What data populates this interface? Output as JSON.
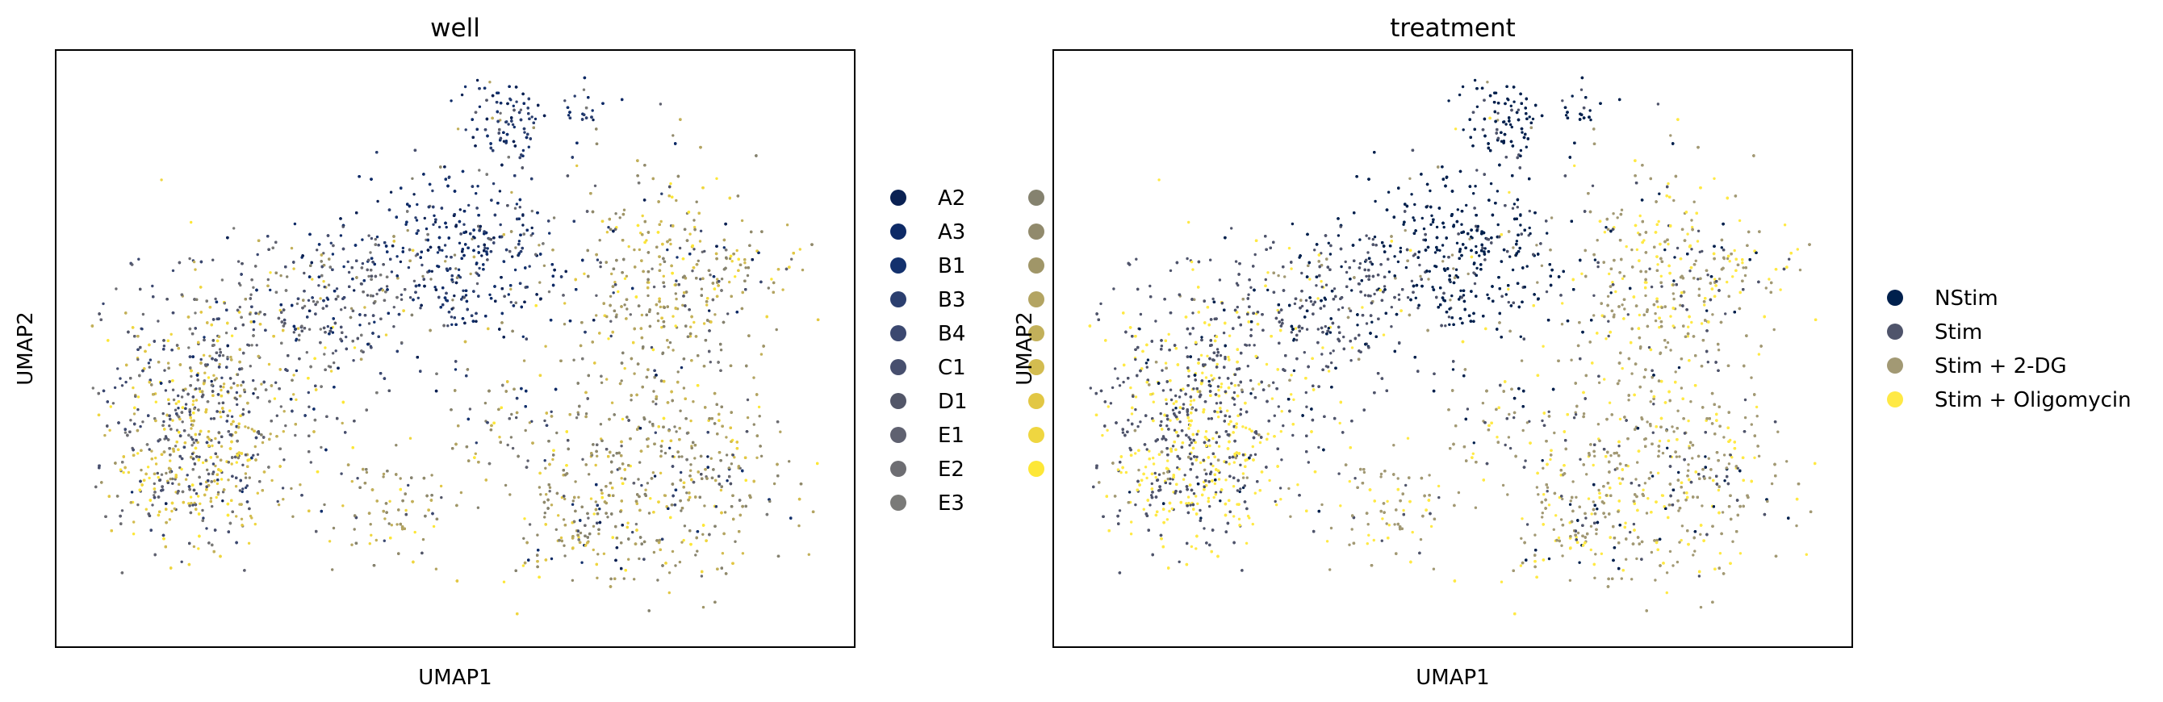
{
  "chart_data": [
    {
      "type": "scatter",
      "title": "well",
      "xlabel": "UMAP1",
      "ylabel": "UMAP2",
      "grid": false,
      "legend_position": "right",
      "legend": [
        {
          "label": "A2",
          "color": "#0a2153"
        },
        {
          "label": "A3",
          "color": "#0d2a66"
        },
        {
          "label": "B1",
          "color": "#13316d"
        },
        {
          "label": "B3",
          "color": "#2b3f6f"
        },
        {
          "label": "B4",
          "color": "#3b4870"
        },
        {
          "label": "C1",
          "color": "#474f6e"
        },
        {
          "label": "D1",
          "color": "#525668"
        },
        {
          "label": "E1",
          "color": "#5f6170"
        },
        {
          "label": "E2",
          "color": "#6d6d72"
        },
        {
          "label": "E3",
          "color": "#7a7a78"
        },
        {
          "label": "",
          "color": "#85826f"
        },
        {
          "label": "",
          "color": "#918a6c"
        },
        {
          "label": "",
          "color": "#a09668"
        },
        {
          "label": "",
          "color": "#b3a462"
        },
        {
          "label": "",
          "color": "#c2b05a"
        },
        {
          "label": "",
          "color": "#d3bc50"
        },
        {
          "label": "",
          "color": "#e2c744"
        },
        {
          "label": "",
          "color": "#efd640"
        },
        {
          "label": "",
          "color": "#fde737"
        }
      ]
    },
    {
      "type": "scatter",
      "title": "treatment",
      "xlabel": "UMAP1",
      "ylabel": "UMAP2",
      "grid": false,
      "legend_position": "right",
      "legend": [
        {
          "label": "NStim",
          "color": "#00204d"
        },
        {
          "label": "Stim",
          "color": "#4f546b"
        },
        {
          "label": "Stim + 2-DG",
          "color": "#a29974"
        },
        {
          "label": "Stim + Oligomycin",
          "color": "#ffe945"
        }
      ]
    }
  ]
}
